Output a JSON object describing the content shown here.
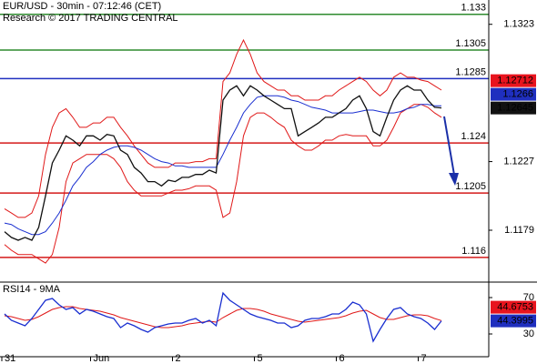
{
  "chart_data": [
    {
      "type": "line",
      "title": "EUR/USD - 30min - 07:12:46 (CET)",
      "subtitle": "Research © 2017 TRADING CENTRAL",
      "ylim": [
        1.1144,
        1.134
      ],
      "yticks": [
        1.1179,
        1.1227,
        1.1323
      ],
      "levels": [
        {
          "value": 1.133,
          "color": "#2e8b2e"
        },
        {
          "value": 1.1305,
          "color": "#2e8b2e"
        },
        {
          "value": 1.1285,
          "color": "#1f2fbf"
        },
        {
          "value": 1.124,
          "color": "#d41a1a"
        },
        {
          "value": 1.1205,
          "color": "#d41a1a"
        },
        {
          "value": 1.116,
          "color": "#d41a1a"
        }
      ],
      "price_labels": [
        {
          "value": 1.12712,
          "color": "#e8141e"
        },
        {
          "value": 1.1266,
          "color": "#1f2fbf"
        },
        {
          "value": 1.12645,
          "color": "#111111"
        }
      ],
      "series": [
        {
          "color": "#e01818",
          "values": [
            1.1194,
            1.1191,
            1.1188,
            1.1188,
            1.1191,
            1.1203,
            1.1232,
            1.1251,
            1.1261,
            1.1264,
            1.1258,
            1.1251,
            1.1251,
            1.1254,
            1.1254,
            1.1258,
            1.1258,
            1.1251,
            1.1245,
            1.1238,
            1.1232,
            1.1226,
            1.1223,
            1.1223,
            1.1223,
            1.1226,
            1.1226,
            1.1226,
            1.1227,
            1.1227,
            1.1229,
            1.1229,
            1.1283,
            1.1289,
            1.1302,
            1.1312,
            1.1302,
            1.1289,
            1.1283,
            1.128,
            1.1277,
            1.1277,
            1.1273,
            1.1273,
            1.127,
            1.127,
            1.127,
            1.1273,
            1.1273,
            1.1277,
            1.128,
            1.1283,
            1.1286,
            1.1283,
            1.1277,
            1.1273,
            1.1277,
            1.1286,
            1.1289,
            1.1286,
            1.1286,
            1.1284,
            1.1283,
            1.128,
            1.1277
          ]
        },
        {
          "color": "#e01818",
          "values": [
            1.1169,
            1.1165,
            1.1162,
            1.1162,
            1.1162,
            1.1159,
            1.1156,
            1.1162,
            1.1181,
            1.1213,
            1.1226,
            1.1229,
            1.1232,
            1.1232,
            1.1232,
            1.1232,
            1.1229,
            1.1223,
            1.1213,
            1.1207,
            1.1203,
            1.1203,
            1.1203,
            1.1203,
            1.1205,
            1.1207,
            1.1207,
            1.1208,
            1.121,
            1.121,
            1.121,
            1.1207,
            1.1188,
            1.1191,
            1.1213,
            1.1245,
            1.1258,
            1.1261,
            1.1261,
            1.1258,
            1.1254,
            1.1251,
            1.1242,
            1.1238,
            1.1235,
            1.1235,
            1.1238,
            1.1242,
            1.1242,
            1.1245,
            1.1246,
            1.1245,
            1.1245,
            1.1245,
            1.1238,
            1.1238,
            1.1242,
            1.1251,
            1.1261,
            1.1264,
            1.1267,
            1.1267,
            1.1265,
            1.1261,
            1.1258
          ]
        },
        {
          "color": "#1a2fd0",
          "values": [
            1.1184,
            1.1183,
            1.118,
            1.1178,
            1.1176,
            1.1176,
            1.1178,
            1.1184,
            1.1191,
            1.12,
            1.121,
            1.1216,
            1.1223,
            1.1227,
            1.1232,
            1.1235,
            1.1237,
            1.1238,
            1.1238,
            1.1237,
            1.1235,
            1.1232,
            1.1229,
            1.1227,
            1.1226,
            1.1224,
            1.1224,
            1.1223,
            1.1223,
            1.1223,
            1.1223,
            1.1223,
            1.1232,
            1.1242,
            1.1251,
            1.1261,
            1.1267,
            1.1272,
            1.1273,
            1.1273,
            1.1273,
            1.1272,
            1.127,
            1.1269,
            1.1267,
            1.1265,
            1.1264,
            1.1263,
            1.1261,
            1.1261,
            1.1261,
            1.1261,
            1.1262,
            1.1263,
            1.1263,
            1.1262,
            1.1261,
            1.1261,
            1.1262,
            1.1264,
            1.1265,
            1.1267,
            1.1267,
            1.1266,
            1.1266
          ]
        },
        {
          "color": "#111111",
          "values": [
            1.1178,
            1.1174,
            1.1172,
            1.1174,
            1.1172,
            1.1181,
            1.1203,
            1.1226,
            1.1235,
            1.1245,
            1.1242,
            1.1238,
            1.1245,
            1.1245,
            1.1242,
            1.1246,
            1.1245,
            1.1235,
            1.1232,
            1.1223,
            1.1219,
            1.1213,
            1.1213,
            1.121,
            1.1214,
            1.1213,
            1.1216,
            1.1216,
            1.1218,
            1.1218,
            1.1221,
            1.1219,
            1.127,
            1.1277,
            1.128,
            1.1273,
            1.128,
            1.1277,
            1.1273,
            1.127,
            1.1267,
            1.1264,
            1.1264,
            1.1245,
            1.1248,
            1.1251,
            1.1254,
            1.1258,
            1.1258,
            1.1261,
            1.1264,
            1.127,
            1.1273,
            1.1264,
            1.1248,
            1.1245,
            1.1258,
            1.127,
            1.1277,
            1.128,
            1.1277,
            1.1277,
            1.127,
            1.1265,
            1.12645
          ]
        }
      ]
    },
    {
      "type": "line",
      "title": "RSI14 - 9MA",
      "categories": [
        "31",
        null,
        null,
        null,
        null,
        null,
        null,
        null,
        null,
        null,
        null,
        null,
        null,
        "Jun",
        null,
        null,
        null,
        null,
        null,
        null,
        null,
        null,
        null,
        null,
        null,
        "2",
        null,
        null,
        null,
        null,
        null,
        null,
        null,
        null,
        null,
        null,
        null,
        "5",
        null,
        null,
        null,
        null,
        null,
        null,
        null,
        null,
        null,
        null,
        null,
        "6",
        null,
        null,
        null,
        null,
        null,
        null,
        null,
        null,
        null,
        null,
        null,
        "7",
        null,
        null,
        null
      ],
      "ylim": [
        5,
        85
      ],
      "yticks": [
        30,
        70
      ],
      "price_labels": [
        {
          "value": 44.6753,
          "color": "#e8141e"
        },
        {
          "value": 44.3995,
          "color": "#1f2fbf"
        }
      ],
      "series": [
        {
          "color": "#e01818",
          "values": [
            50,
            49,
            47,
            45,
            46,
            49,
            53,
            57,
            59,
            60,
            60,
            58,
            57,
            56,
            55,
            53,
            51,
            48,
            46,
            44,
            42,
            40,
            38,
            37,
            37,
            38,
            39,
            41,
            42,
            43,
            44,
            43,
            48,
            52,
            56,
            58,
            58,
            57,
            55,
            52,
            50,
            48,
            46,
            44,
            43,
            44,
            45,
            46,
            47,
            48,
            50,
            53,
            55,
            56,
            52,
            48,
            46,
            46,
            48,
            50,
            51,
            51,
            50,
            47,
            44.6753
          ]
        },
        {
          "color": "#1a2fd0",
          "values": [
            52,
            45,
            42,
            39,
            47,
            57,
            67,
            69,
            62,
            57,
            59,
            52,
            57,
            55,
            52,
            49,
            47,
            37,
            42,
            39,
            35,
            32,
            37,
            39,
            41,
            42,
            42,
            45,
            47,
            42,
            45,
            39,
            75,
            67,
            62,
            57,
            52,
            49,
            47,
            45,
            42,
            42,
            37,
            39,
            45,
            47,
            47,
            49,
            52,
            52,
            57,
            65,
            62,
            52,
            22,
            35,
            47,
            57,
            59,
            52,
            49,
            47,
            42,
            35,
            44.3995
          ]
        }
      ]
    }
  ]
}
